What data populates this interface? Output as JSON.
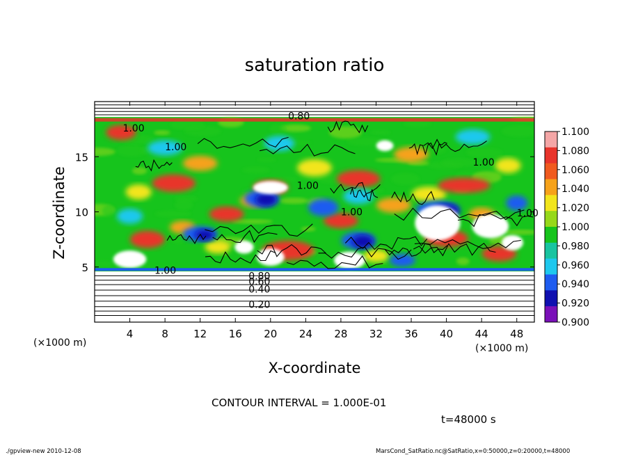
{
  "chart_data": {
    "type": "heatmap",
    "title": "saturation ratio",
    "xlabel": "X-coordinate",
    "ylabel": "Z-coordinate",
    "x_unit_left": "(×1000 m)",
    "x_unit_right": "(×1000 m)",
    "xlim": [
      0,
      50
    ],
    "ylim": [
      0,
      20
    ],
    "xticks": [
      "4",
      "8",
      "12",
      "16",
      "20",
      "24",
      "28",
      "32",
      "36",
      "40",
      "44",
      "48"
    ],
    "xtick_values": [
      4,
      8,
      12,
      16,
      20,
      24,
      28,
      32,
      36,
      40,
      44,
      48
    ],
    "yticks": [
      "5",
      "10",
      "15"
    ],
    "ytick_values": [
      5,
      10,
      15
    ],
    "colorbar": {
      "labels": [
        "1.100",
        "1.080",
        "1.060",
        "1.040",
        "1.020",
        "1.000",
        "0.980",
        "0.960",
        "0.940",
        "0.920",
        "0.900"
      ],
      "colors": [
        "#f4a6a6",
        "#e8342b",
        "#f05a1e",
        "#f6a21a",
        "#f2e51c",
        "#96d81a",
        "#16c41c",
        "#18c4a0",
        "#1ec8ee",
        "#1e5cf0",
        "#1010b0",
        "#7a10b8"
      ]
    },
    "contour_labels": [
      "0.80",
      "1.00",
      "1.00",
      "1.00",
      "1.00",
      "1.00",
      "1.00",
      "1.00",
      "0.40",
      "0.20",
      "0.60",
      "0.80"
    ],
    "contour_interval_text": "CONTOUR INTERVAL = 1.000E-01",
    "time_text": "t=48000 s",
    "layers": {
      "surface_lines_z": [
        0.6,
        1.0,
        1.4,
        1.9,
        2.4,
        2.9,
        3.4,
        3.8,
        4.2
      ],
      "saturated_band_z": [
        4.6,
        18.6
      ],
      "top_lines_z": [
        18.8,
        19.1,
        19.4,
        19.7
      ]
    },
    "regions": {
      "red": [
        [
          3,
          17.2,
          2.5,
          0.5
        ],
        [
          9,
          12.6,
          4,
          0.6
        ],
        [
          20,
          12.2,
          3,
          0.5
        ],
        [
          30,
          13.0,
          4,
          0.6
        ],
        [
          42,
          12.4,
          5,
          0.5
        ],
        [
          6,
          7.5,
          3,
          0.6
        ],
        [
          22,
          6.5,
          5,
          0.7
        ],
        [
          40,
          7.6,
          4,
          0.6
        ],
        [
          46,
          6.2,
          3,
          0.5
        ],
        [
          15,
          9.8,
          3,
          0.5
        ],
        [
          28,
          9.2,
          3,
          0.5
        ]
      ],
      "orange": [
        [
          12,
          14.4,
          3,
          0.5
        ],
        [
          36,
          15.2,
          3,
          0.5
        ],
        [
          18,
          11.0,
          2,
          0.4
        ],
        [
          34,
          10.6,
          3,
          0.5
        ],
        [
          10,
          8.6,
          2,
          0.4
        ],
        [
          44,
          9.8,
          2,
          0.4
        ]
      ],
      "yellow": [
        [
          25,
          14.0,
          3,
          0.6
        ],
        [
          5,
          11.8,
          2,
          0.5
        ],
        [
          38,
          11.6,
          3,
          0.5
        ],
        [
          47,
          14.2,
          2,
          0.5
        ],
        [
          14,
          6.8,
          2,
          0.4
        ],
        [
          32,
          6.0,
          2,
          0.4
        ]
      ],
      "cyan": [
        [
          8,
          15.8,
          3,
          0.5
        ],
        [
          21,
          16.2,
          2.5,
          0.5
        ],
        [
          43,
          16.8,
          3,
          0.5
        ],
        [
          30,
          11.4,
          2.5,
          0.5
        ],
        [
          4,
          9.6,
          2,
          0.5
        ]
      ],
      "blue": [
        [
          19,
          11.2,
          3,
          0.6
        ],
        [
          26,
          10.4,
          2.5,
          0.6
        ],
        [
          39,
          10.2,
          4,
          0.6
        ],
        [
          12,
          8.0,
          3,
          0.5
        ],
        [
          30,
          7.4,
          3,
          0.6
        ],
        [
          48,
          10.8,
          1.5,
          0.5
        ],
        [
          35,
          5.6,
          2,
          0.4
        ]
      ],
      "navy": [
        [
          19.5,
          11.1,
          1.5,
          0.4
        ],
        [
          40,
          10.1,
          2,
          0.4
        ],
        [
          30.5,
          7.3,
          1.5,
          0.4
        ],
        [
          12.5,
          7.9,
          1.2,
          0.3
        ]
      ],
      "white": [
        [
          39,
          9.0,
          4.2,
          1.4
        ],
        [
          45,
          8.7,
          3.2,
          0.9
        ],
        [
          20,
          12.2,
          3.0,
          0.4
        ],
        [
          4,
          5.7,
          2.8,
          0.6
        ],
        [
          20,
          5.9,
          2.2,
          0.6
        ],
        [
          29,
          5.6,
          2.6,
          0.6
        ],
        [
          17,
          6.8,
          1.2,
          0.4
        ],
        [
          47.5,
          7.2,
          1.5,
          0.5
        ],
        [
          33,
          16.0,
          1.0,
          0.3
        ]
      ]
    }
  },
  "footer": {
    "left": "./gpview-new   2010-12-08",
    "right": "MarsCond_SatRatio.nc@SatRatio,x=0:50000,z=0:20000,t=48000"
  }
}
